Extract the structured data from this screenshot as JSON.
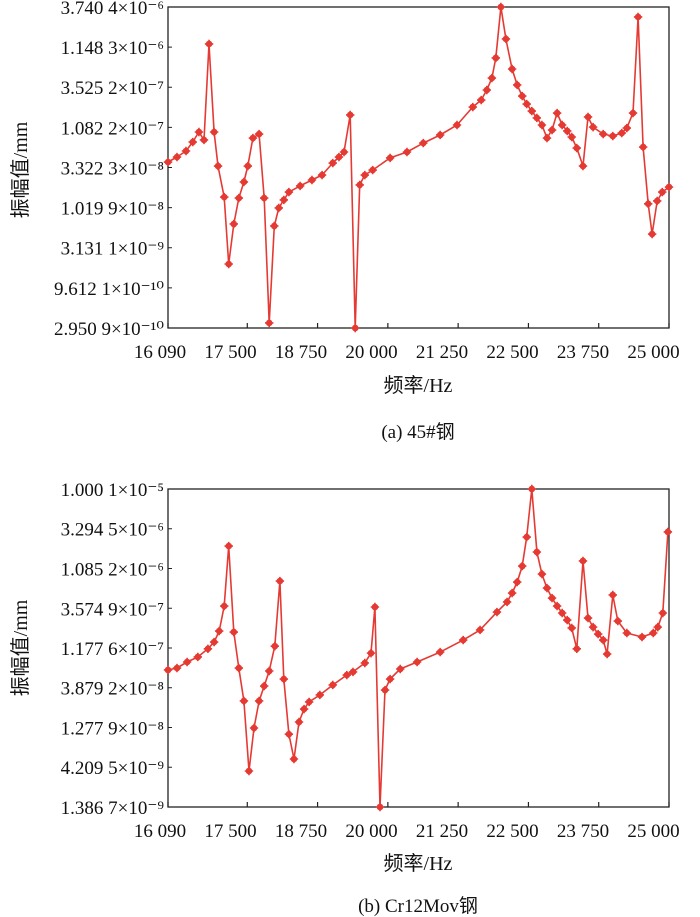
{
  "colors": {
    "series": "#e53a33",
    "axis": "#222222"
  },
  "chart_data": [
    {
      "type": "line",
      "caption": "(a) 45#钢",
      "xlabel": "频率/Hz",
      "ylabel": "振幅值/mm",
      "xscale": "linear",
      "yscale": "log",
      "xlim": [
        16090,
        25000
      ],
      "ylim": [
        2.95e-10,
        3.74e-06
      ],
      "grid": false,
      "marker": "star",
      "x_ticks": [
        16090,
        17500,
        18750,
        20000,
        21250,
        22500,
        23750,
        25000
      ],
      "x_tick_labels": [
        "16 090",
        "17 500",
        "18 750",
        "20 000",
        "21 250",
        "22 500",
        "23 750",
        "25 000"
      ],
      "y_ticks": [
        3.74e-06,
        1.148e-06,
        3.525e-07,
        1.082e-07,
        3.322e-08,
        1.019e-08,
        3.131e-09,
        9.612e-10,
        2.95e-10
      ],
      "y_tick_labels": [
        "3.740 4×10⁻⁶",
        "1.148 3×10⁻⁶",
        "3.525 2×10⁻⁷",
        "1.082 2×10⁻⁷",
        "3.322 3×10⁻⁸",
        "1.019 9×10⁻⁸",
        "3.131 1×10⁻⁹",
        "9.612 1×10⁻¹⁰",
        "2.950 9×10⁻¹⁰"
      ],
      "x": [
        16090,
        16250,
        16410,
        16530,
        16640,
        16730,
        16820,
        16910,
        16980,
        17090,
        17170,
        17260,
        17350,
        17440,
        17510,
        17600,
        17710,
        17800,
        17890,
        17980,
        18060,
        18150,
        18240,
        18440,
        18650,
        18830,
        19020,
        19130,
        19220,
        19330,
        19420,
        19500,
        19590,
        19730,
        20040,
        20340,
        20630,
        20930,
        21230,
        21510,
        21660,
        21760,
        21850,
        21920,
        22010,
        22100,
        22210,
        22300,
        22390,
        22470,
        22560,
        22650,
        22740,
        22830,
        22920,
        23010,
        23100,
        23190,
        23270,
        23360,
        23470,
        23560,
        23650,
        23830,
        24000,
        24160,
        24250,
        24360,
        24450,
        24540,
        24630,
        24700,
        24790,
        24880,
        25000
      ],
      "y": [
        3.9e-08,
        4.52e-08,
        5.4e-08,
        7.03e-08,
        9.44e-08,
        7.47e-08,
        1.26e-06,
        9.44e-08,
        3.47e-08,
        1.39e-08,
        1.94e-09,
        6.3e-09,
        1.35e-08,
        2.17e-08,
        3.47e-08,
        7.91e-08,
        8.89e-08,
        1.35e-08,
        3.42e-10,
        5.94e-09,
        1.01e-08,
        1.28e-08,
        1.61e-08,
        1.93e-08,
        2.3e-08,
        2.66e-08,
        3.79e-08,
        4.52e-08,
        5.24e-08,
        1.56e-07,
        2.95e-10,
        1.99e-08,
        2.66e-08,
        3.08e-08,
        4.4e-08,
        5.24e-08,
        6.82e-08,
        8.65e-08,
        1.16e-07,
        1.97e-07,
        2.42e-07,
        3.25e-07,
        4.62e-07,
        8.34e-07,
        3.74e-06,
        1.46e-06,
        6.03e-07,
        3.77e-07,
        2.72e-07,
        2.15e-07,
        1.75e-07,
        1.43e-07,
        1.16e-07,
        7.91e-08,
        1e-07,
        1.65e-07,
        1.16e-07,
        9.73e-08,
        8.15e-08,
        5.89e-08,
        3.47e-08,
        1.47e-07,
        1.09e-07,
        8.89e-08,
        8.39e-08,
        9.16e-08,
        1.06e-07,
        1.65e-07,
        2.79e-06,
        6.07e-08,
        1.14e-08,
        4.69e-09,
        1.24e-08,
        1.61e-08,
        1.87e-08
      ]
    },
    {
      "type": "line",
      "caption": "(b) Cr12Mov钢",
      "xlabel": "频率/Hz",
      "ylabel": "振幅值/mm",
      "xscale": "linear",
      "yscale": "log",
      "xlim": [
        16090,
        25000
      ],
      "ylim": [
        1.386e-09,
        1e-05
      ],
      "grid": false,
      "marker": "star",
      "x_ticks": [
        16090,
        17500,
        18750,
        20000,
        21250,
        22500,
        23750,
        25000
      ],
      "x_tick_labels": [
        "16 090",
        "17 500",
        "18 750",
        "20 000",
        "21 250",
        "22 500",
        "23 750",
        "25 000"
      ],
      "y_ticks": [
        1e-05,
        3.294e-06,
        1.085e-06,
        3.574e-07,
        1.177e-07,
        3.879e-08,
        1.277e-08,
        4.209e-09,
        1.386e-09
      ],
      "y_tick_labels": [
        "1.000 1×10⁻⁵",
        "3.294 5×10⁻⁶",
        "1.085 2×10⁻⁶",
        "3.574 9×10⁻⁷",
        "1.177 6×10⁻⁷",
        "3.879 2×10⁻⁸",
        "1.277 9×10⁻⁸",
        "4.209 5×10⁻⁹",
        "1.386 7×10⁻⁹"
      ],
      "x": [
        16090,
        16250,
        16430,
        16620,
        16800,
        16910,
        17000,
        17090,
        17170,
        17260,
        17350,
        17440,
        17530,
        17620,
        17710,
        17800,
        17890,
        17990,
        18080,
        18150,
        18240,
        18330,
        18420,
        18510,
        18600,
        18790,
        19020,
        19270,
        19380,
        19590,
        19700,
        19770,
        19860,
        19950,
        20040,
        20220,
        20520,
        20930,
        21340,
        21640,
        21940,
        22120,
        22210,
        22300,
        22390,
        22470,
        22560,
        22650,
        22740,
        22830,
        22920,
        23010,
        23100,
        23190,
        23270,
        23360,
        23470,
        23560,
        23650,
        23740,
        23830,
        23900,
        24000,
        24090,
        24250,
        24520,
        24720,
        24800,
        24890,
        24980
      ],
      "y": [
        6.37e-08,
        6.73e-08,
        7.96e-08,
        9.16e-08,
        1.15e-07,
        1.39e-07,
        1.89e-07,
        3.8e-07,
        2.03e-06,
        1.84e-07,
        6.73e-08,
        2.68e-08,
        3.79e-09,
        1.26e-08,
        2.68e-08,
        4.07e-08,
        6.19e-08,
        1.24e-07,
        7.64e-07,
        4.95e-08,
        1.06e-08,
        5.3e-09,
        1.49e-08,
        2.14e-08,
        2.61e-08,
        3.17e-08,
        4.19e-08,
        5.53e-08,
        6.03e-08,
        7.74e-08,
        1.02e-07,
        3.7e-07,
        1.386e-09,
        3.64e-08,
        4.95e-08,
        6.55e-08,
        7.96e-08,
        1.05e-07,
        1.47e-07,
        1.95e-07,
        3.21e-07,
        4.26e-07,
        5.47e-07,
        7.43e-07,
        1.16e-06,
        2.61e-06,
        1e-05,
        1.72e-06,
        9.29e-07,
        6.28e-07,
        4.75e-07,
        3.8e-07,
        3.13e-07,
        2.57e-07,
        2.06e-07,
        1.15e-07,
        1.34e-06,
        2.72e-07,
        2.11e-07,
        1.74e-07,
        1.47e-07,
        9.95e-08,
        5.18e-07,
        2.5e-07,
        1.79e-07,
        1.6e-07,
        1.79e-07,
        2.11e-07,
        3.13e-07,
        3.01e-06
      ]
    }
  ]
}
